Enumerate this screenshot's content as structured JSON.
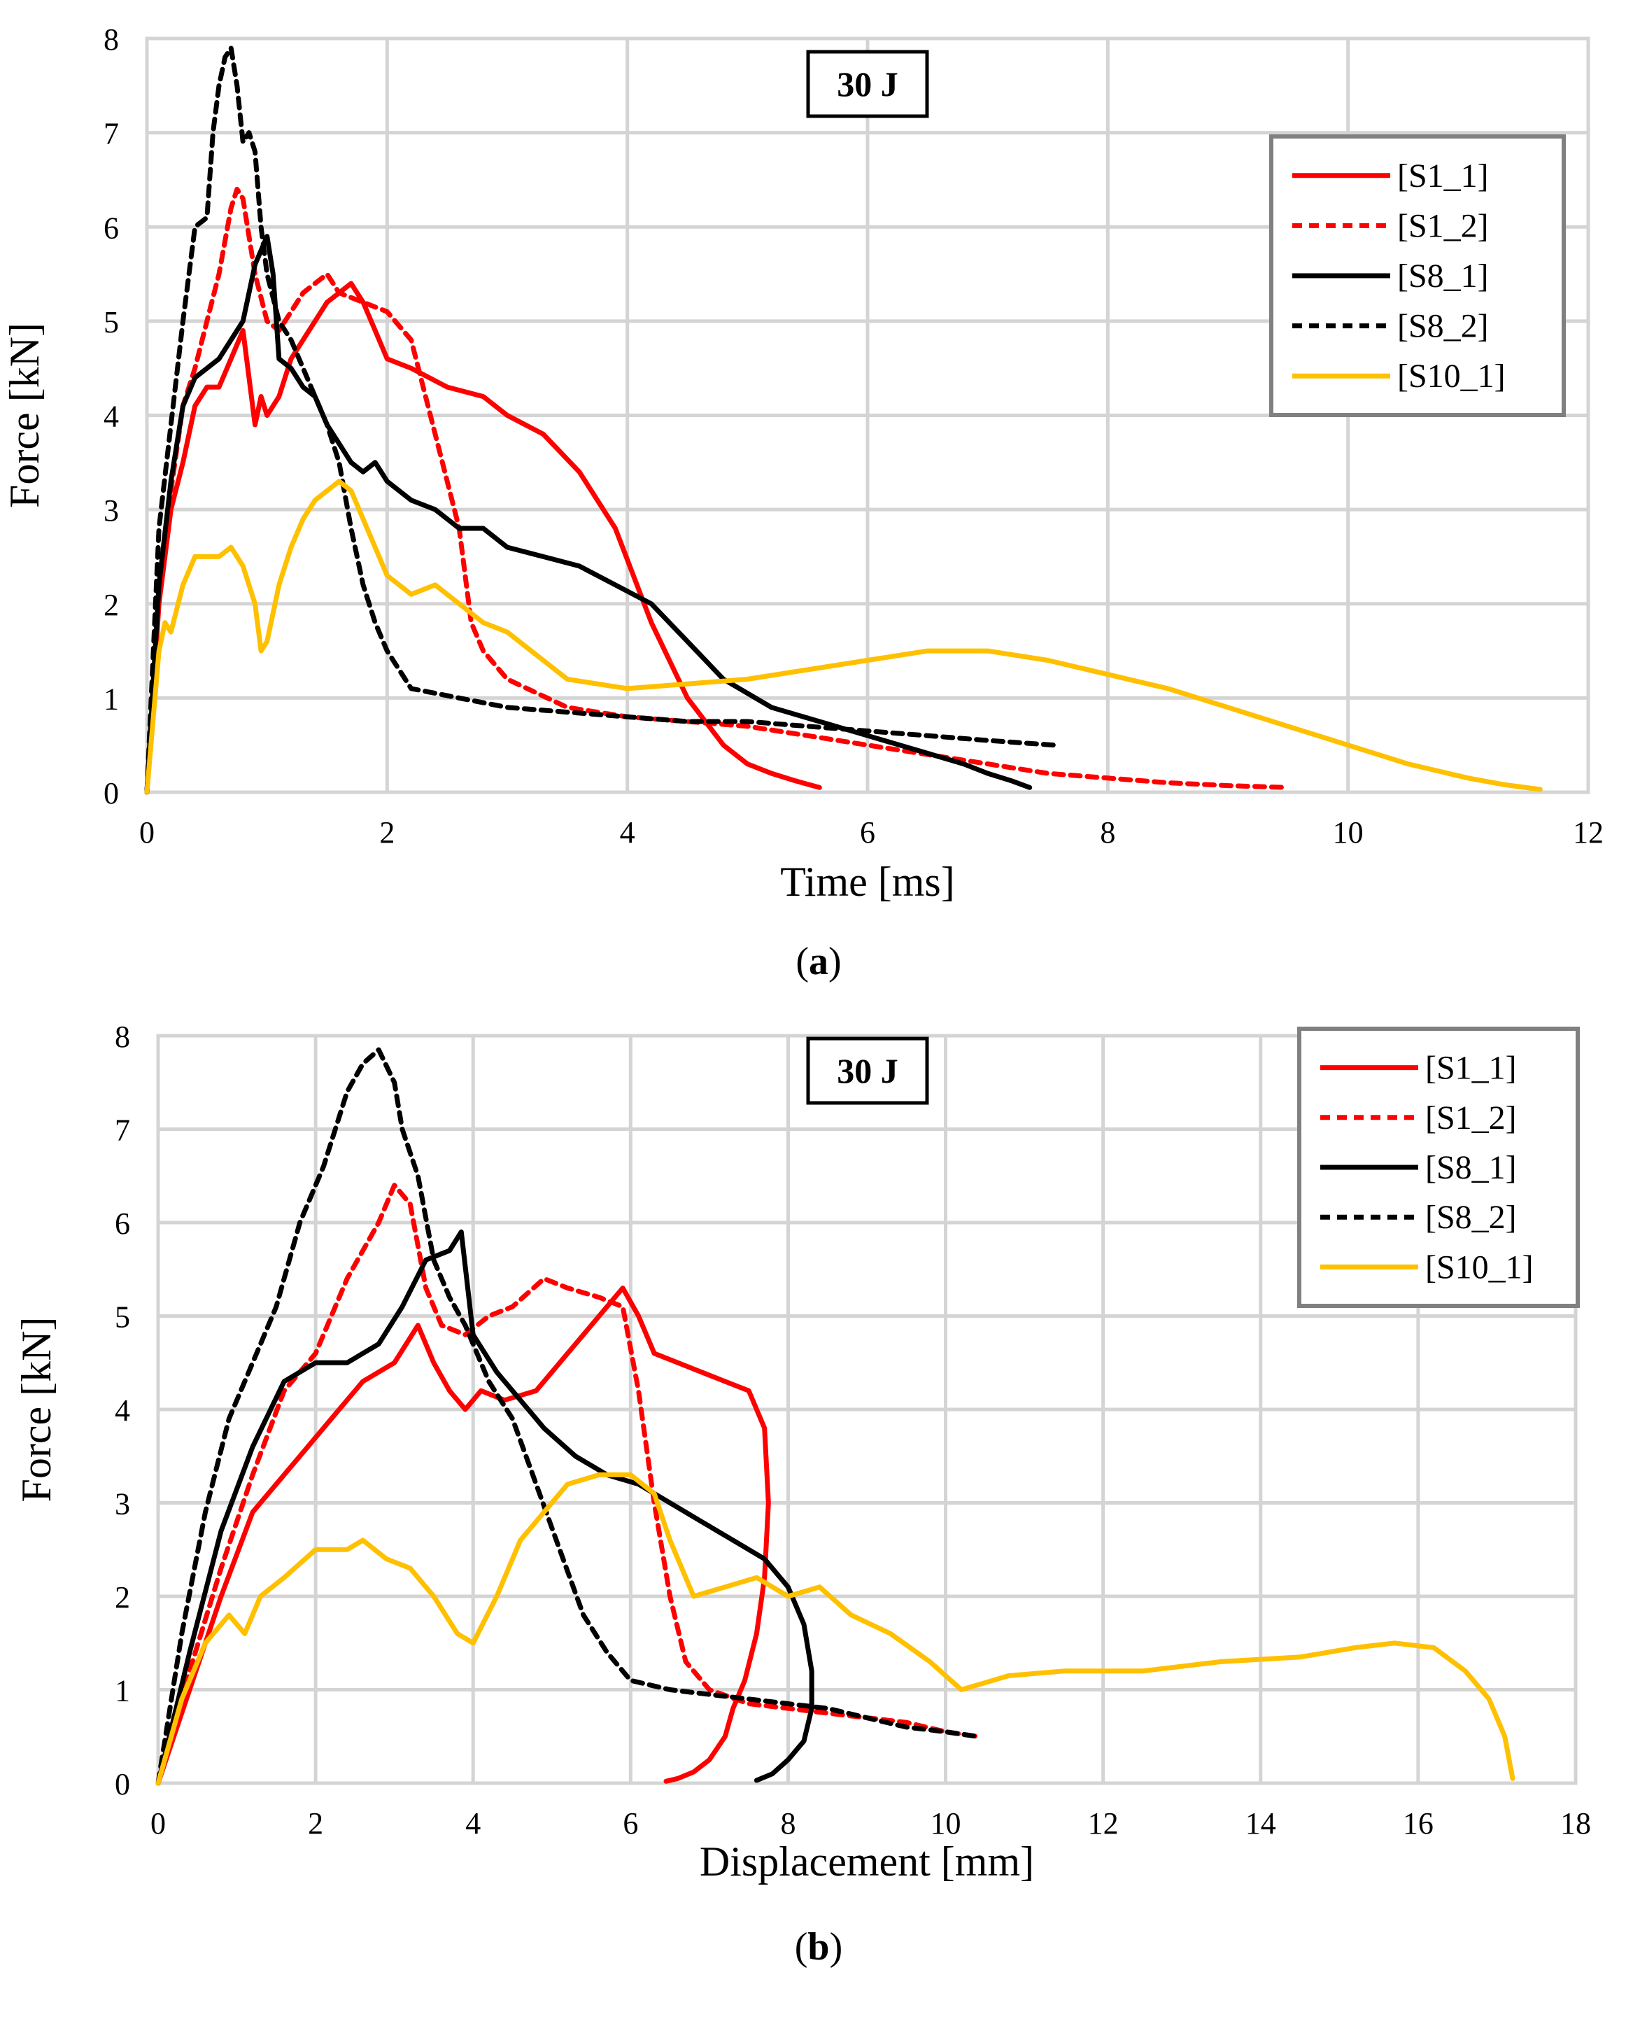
{
  "chart_data": [
    {
      "id": "a",
      "type": "line",
      "title": "30 J",
      "caption_letter": "a",
      "xlabel": "Time [ms]",
      "ylabel": "Force [kN]",
      "xlim": [
        0,
        12
      ],
      "ylim": [
        0,
        8
      ],
      "xticks": [
        "0",
        "2",
        "4",
        "6",
        "8",
        "10",
        "12"
      ],
      "yticks": [
        "0",
        "1",
        "2",
        "3",
        "4",
        "5",
        "6",
        "7",
        "8"
      ],
      "grid": true,
      "legend_position": "top-right",
      "series": [
        {
          "name": "[S1_1]",
          "color": "#ff0000",
          "dash": "solid",
          "x": [
            0,
            0.1,
            0.2,
            0.3,
            0.4,
            0.5,
            0.6,
            0.7,
            0.8,
            0.85,
            0.9,
            0.95,
            1.0,
            1.1,
            1.2,
            1.3,
            1.4,
            1.5,
            1.6,
            1.7,
            1.8,
            1.9,
            2.0,
            2.2,
            2.5,
            2.8,
            3.0,
            3.3,
            3.6,
            3.9,
            4.2,
            4.5,
            4.8,
            5.0,
            5.2,
            5.4,
            5.6
          ],
          "y": [
            0,
            2.0,
            3.0,
            3.5,
            4.1,
            4.3,
            4.3,
            4.6,
            4.9,
            4.4,
            3.9,
            4.2,
            4.0,
            4.2,
            4.6,
            4.8,
            5.0,
            5.2,
            5.3,
            5.4,
            5.2,
            4.9,
            4.6,
            4.5,
            4.3,
            4.2,
            4.0,
            3.8,
            3.4,
            2.8,
            1.8,
            1.0,
            0.5,
            0.3,
            0.2,
            0.12,
            0.05
          ]
        },
        {
          "name": "[S1_2]",
          "color": "#ff0000",
          "dash": "dashed",
          "x": [
            0,
            0.1,
            0.2,
            0.3,
            0.4,
            0.5,
            0.6,
            0.7,
            0.75,
            0.8,
            0.9,
            1.0,
            1.1,
            1.2,
            1.3,
            1.4,
            1.5,
            1.6,
            1.8,
            2.0,
            2.2,
            2.4,
            2.6,
            2.7,
            2.8,
            3.0,
            3.5,
            4.0,
            4.5,
            5.0,
            5.5,
            6.0,
            6.5,
            7.0,
            7.5,
            8.0,
            8.5,
            9.0,
            9.5
          ],
          "y": [
            0,
            2.2,
            3.2,
            4.1,
            4.5,
            5.0,
            5.5,
            6.2,
            6.4,
            6.3,
            5.5,
            5.0,
            4.9,
            5.1,
            5.3,
            5.4,
            5.5,
            5.3,
            5.2,
            5.1,
            4.8,
            3.8,
            2.8,
            1.8,
            1.5,
            1.2,
            0.9,
            0.8,
            0.75,
            0.7,
            0.6,
            0.5,
            0.4,
            0.3,
            0.2,
            0.15,
            0.1,
            0.07,
            0.05
          ]
        },
        {
          "name": "[S8_1]",
          "color": "#000000",
          "dash": "solid",
          "x": [
            0,
            0.1,
            0.2,
            0.3,
            0.4,
            0.5,
            0.6,
            0.7,
            0.8,
            0.9,
            1.0,
            1.05,
            1.1,
            1.2,
            1.3,
            1.4,
            1.5,
            1.6,
            1.7,
            1.8,
            1.9,
            2.0,
            2.2,
            2.4,
            2.6,
            2.8,
            3.0,
            3.3,
            3.6,
            3.9,
            4.2,
            4.5,
            4.8,
            5.2,
            5.6,
            6.0,
            6.4,
            6.8,
            7.0,
            7.2,
            7.35
          ],
          "y": [
            0,
            2.2,
            3.3,
            4.1,
            4.4,
            4.5,
            4.6,
            4.8,
            5.0,
            5.6,
            5.9,
            5.5,
            4.6,
            4.5,
            4.3,
            4.2,
            3.9,
            3.7,
            3.5,
            3.4,
            3.5,
            3.3,
            3.1,
            3.0,
            2.8,
            2.8,
            2.6,
            2.5,
            2.4,
            2.2,
            2.0,
            1.6,
            1.2,
            0.9,
            0.75,
            0.6,
            0.45,
            0.3,
            0.2,
            0.12,
            0.05
          ]
        },
        {
          "name": "[S8_2]",
          "color": "#000000",
          "dash": "dashed",
          "x": [
            0,
            0.1,
            0.2,
            0.3,
            0.4,
            0.5,
            0.55,
            0.6,
            0.65,
            0.7,
            0.75,
            0.8,
            0.85,
            0.9,
            0.95,
            1.0,
            1.1,
            1.2,
            1.3,
            1.4,
            1.5,
            1.6,
            1.7,
            1.8,
            1.9,
            2.0,
            2.2,
            2.4,
            2.6,
            2.8,
            3.0,
            3.5,
            4.0,
            4.5,
            5.0,
            5.5,
            6.0,
            6.5,
            7.0,
            7.55
          ],
          "y": [
            0,
            2.8,
            3.9,
            5.0,
            6.0,
            6.1,
            7.0,
            7.5,
            7.8,
            7.9,
            7.5,
            6.9,
            7.0,
            6.8,
            6.0,
            5.5,
            5.0,
            4.8,
            4.5,
            4.2,
            3.9,
            3.5,
            2.8,
            2.2,
            1.8,
            1.5,
            1.1,
            1.05,
            1.0,
            0.95,
            0.9,
            0.85,
            0.8,
            0.75,
            0.75,
            0.7,
            0.65,
            0.6,
            0.55,
            0.5
          ]
        },
        {
          "name": "[S10_1]",
          "color": "#ffc000",
          "dash": "solid",
          "x": [
            0,
            0.1,
            0.15,
            0.2,
            0.3,
            0.4,
            0.5,
            0.6,
            0.7,
            0.8,
            0.9,
            0.95,
            1.0,
            1.1,
            1.2,
            1.3,
            1.4,
            1.5,
            1.6,
            1.7,
            1.8,
            2.0,
            2.2,
            2.4,
            2.6,
            2.8,
            3.0,
            3.2,
            3.5,
            4.0,
            4.5,
            5.0,
            5.5,
            6.0,
            6.5,
            7.0,
            7.5,
            8.0,
            8.5,
            9.0,
            9.5,
            10.0,
            10.5,
            11.0,
            11.3,
            11.6
          ],
          "y": [
            0,
            1.5,
            1.8,
            1.7,
            2.2,
            2.5,
            2.5,
            2.5,
            2.6,
            2.4,
            2.0,
            1.5,
            1.6,
            2.2,
            2.6,
            2.9,
            3.1,
            3.2,
            3.3,
            3.2,
            2.9,
            2.3,
            2.1,
            2.2,
            2.0,
            1.8,
            1.7,
            1.5,
            1.2,
            1.1,
            1.15,
            1.2,
            1.3,
            1.4,
            1.5,
            1.5,
            1.4,
            1.25,
            1.1,
            0.9,
            0.7,
            0.5,
            0.3,
            0.15,
            0.08,
            0.03
          ]
        }
      ]
    },
    {
      "id": "b",
      "type": "line",
      "title": "30 J",
      "caption_letter": "b",
      "xlabel": "Displacement [mm]",
      "ylabel": "Force [kN]",
      "xlim": [
        0,
        18
      ],
      "ylim": [
        0,
        8
      ],
      "xticks": [
        "0",
        "2",
        "4",
        "6",
        "8",
        "10",
        "12",
        "14",
        "16",
        "18"
      ],
      "yticks": [
        "0",
        "1",
        "2",
        "3",
        "4",
        "5",
        "6",
        "7",
        "8"
      ],
      "grid": true,
      "legend_position": "top-right",
      "series": [
        {
          "name": "[S1_1]",
          "color": "#ff0000",
          "dash": "solid",
          "x": [
            0,
            0.4,
            0.8,
            1.2,
            1.5,
            1.8,
            2.2,
            2.6,
            3.0,
            3.3,
            3.5,
            3.7,
            3.9,
            4.1,
            4.4,
            4.8,
            5.2,
            5.6,
            5.9,
            6.1,
            6.3,
            6.6,
            6.9,
            7.2,
            7.5,
            7.7,
            7.75,
            7.7,
            7.6,
            7.45,
            7.3,
            7.2,
            7.0,
            6.8,
            6.6,
            6.45
          ],
          "y": [
            0,
            1.0,
            2.0,
            2.9,
            3.2,
            3.5,
            3.9,
            4.3,
            4.5,
            4.9,
            4.5,
            4.2,
            4.0,
            4.2,
            4.1,
            4.2,
            4.6,
            5.0,
            5.3,
            5.0,
            4.6,
            4.5,
            4.4,
            4.3,
            4.2,
            3.8,
            3.0,
            2.2,
            1.6,
            1.1,
            0.8,
            0.5,
            0.25,
            0.12,
            0.05,
            0.02
          ]
        },
        {
          "name": "[S1_2]",
          "color": "#ff0000",
          "dash": "dashed",
          "x": [
            0,
            0.4,
            0.8,
            1.2,
            1.6,
            2.0,
            2.4,
            2.8,
            3.0,
            3.2,
            3.4,
            3.6,
            3.9,
            4.2,
            4.5,
            4.9,
            5.2,
            5.6,
            5.9,
            6.1,
            6.3,
            6.5,
            6.7,
            7.0,
            7.5,
            8.0,
            8.5,
            9.0,
            9.5,
            10.0,
            10.4
          ],
          "y": [
            0,
            1.2,
            2.3,
            3.3,
            4.2,
            4.6,
            5.4,
            6.0,
            6.4,
            6.2,
            5.3,
            4.9,
            4.8,
            5.0,
            5.1,
            5.4,
            5.3,
            5.2,
            5.1,
            4.2,
            3.0,
            2.0,
            1.3,
            1.0,
            0.85,
            0.8,
            0.75,
            0.7,
            0.65,
            0.55,
            0.5
          ]
        },
        {
          "name": "[S8_1]",
          "color": "#000000",
          "dash": "solid",
          "x": [
            0,
            0.4,
            0.8,
            1.2,
            1.6,
            2.0,
            2.4,
            2.8,
            3.1,
            3.4,
            3.7,
            3.85,
            4.0,
            4.3,
            4.6,
            4.9,
            5.3,
            5.7,
            6.1,
            6.5,
            6.9,
            7.3,
            7.7,
            8.0,
            8.2,
            8.3,
            8.3,
            8.2,
            8.0,
            7.8,
            7.6
          ],
          "y": [
            0,
            1.4,
            2.7,
            3.6,
            4.3,
            4.5,
            4.5,
            4.7,
            5.1,
            5.6,
            5.7,
            5.9,
            4.8,
            4.4,
            4.1,
            3.8,
            3.5,
            3.3,
            3.2,
            3.0,
            2.8,
            2.6,
            2.4,
            2.1,
            1.7,
            1.2,
            0.8,
            0.45,
            0.25,
            0.1,
            0.03
          ]
        },
        {
          "name": "[S8_2]",
          "color": "#000000",
          "dash": "dashed",
          "x": [
            0,
            0.3,
            0.6,
            0.9,
            1.2,
            1.5,
            1.8,
            2.1,
            2.4,
            2.6,
            2.8,
            3.0,
            3.1,
            3.3,
            3.5,
            3.7,
            3.9,
            4.2,
            4.5,
            4.8,
            5.1,
            5.4,
            5.7,
            6.0,
            6.5,
            7.0,
            7.5,
            8.0,
            8.5,
            9.0,
            9.5,
            10.0,
            10.4
          ],
          "y": [
            0,
            1.6,
            2.9,
            3.9,
            4.5,
            5.1,
            6.0,
            6.6,
            7.4,
            7.7,
            7.85,
            7.5,
            7.0,
            6.5,
            5.6,
            5.2,
            4.9,
            4.3,
            3.9,
            3.2,
            2.5,
            1.8,
            1.4,
            1.1,
            1.0,
            0.95,
            0.9,
            0.85,
            0.8,
            0.7,
            0.6,
            0.55,
            0.5
          ]
        },
        {
          "name": "[S10_1]",
          "color": "#ffc000",
          "dash": "solid",
          "x": [
            0,
            0.3,
            0.6,
            0.9,
            1.1,
            1.3,
            1.6,
            2.0,
            2.4,
            2.6,
            2.9,
            3.2,
            3.5,
            3.8,
            4.0,
            4.3,
            4.6,
            4.9,
            5.2,
            5.6,
            6.0,
            6.3,
            6.5,
            6.8,
            7.2,
            7.6,
            8.0,
            8.4,
            8.8,
            9.3,
            9.8,
            10.2,
            10.8,
            11.5,
            12.5,
            13.5,
            14.5,
            15.2,
            15.7,
            16.2,
            16.6,
            16.9,
            17.1,
            17.2
          ],
          "y": [
            0,
            0.9,
            1.5,
            1.8,
            1.6,
            2.0,
            2.2,
            2.5,
            2.5,
            2.6,
            2.4,
            2.3,
            2.0,
            1.6,
            1.5,
            2.0,
            2.6,
            2.9,
            3.2,
            3.3,
            3.3,
            3.1,
            2.6,
            2.0,
            2.1,
            2.2,
            2.0,
            2.1,
            1.8,
            1.6,
            1.3,
            1.0,
            1.15,
            1.2,
            1.2,
            1.3,
            1.35,
            1.45,
            1.5,
            1.45,
            1.2,
            0.9,
            0.5,
            0.05
          ]
        }
      ]
    }
  ]
}
